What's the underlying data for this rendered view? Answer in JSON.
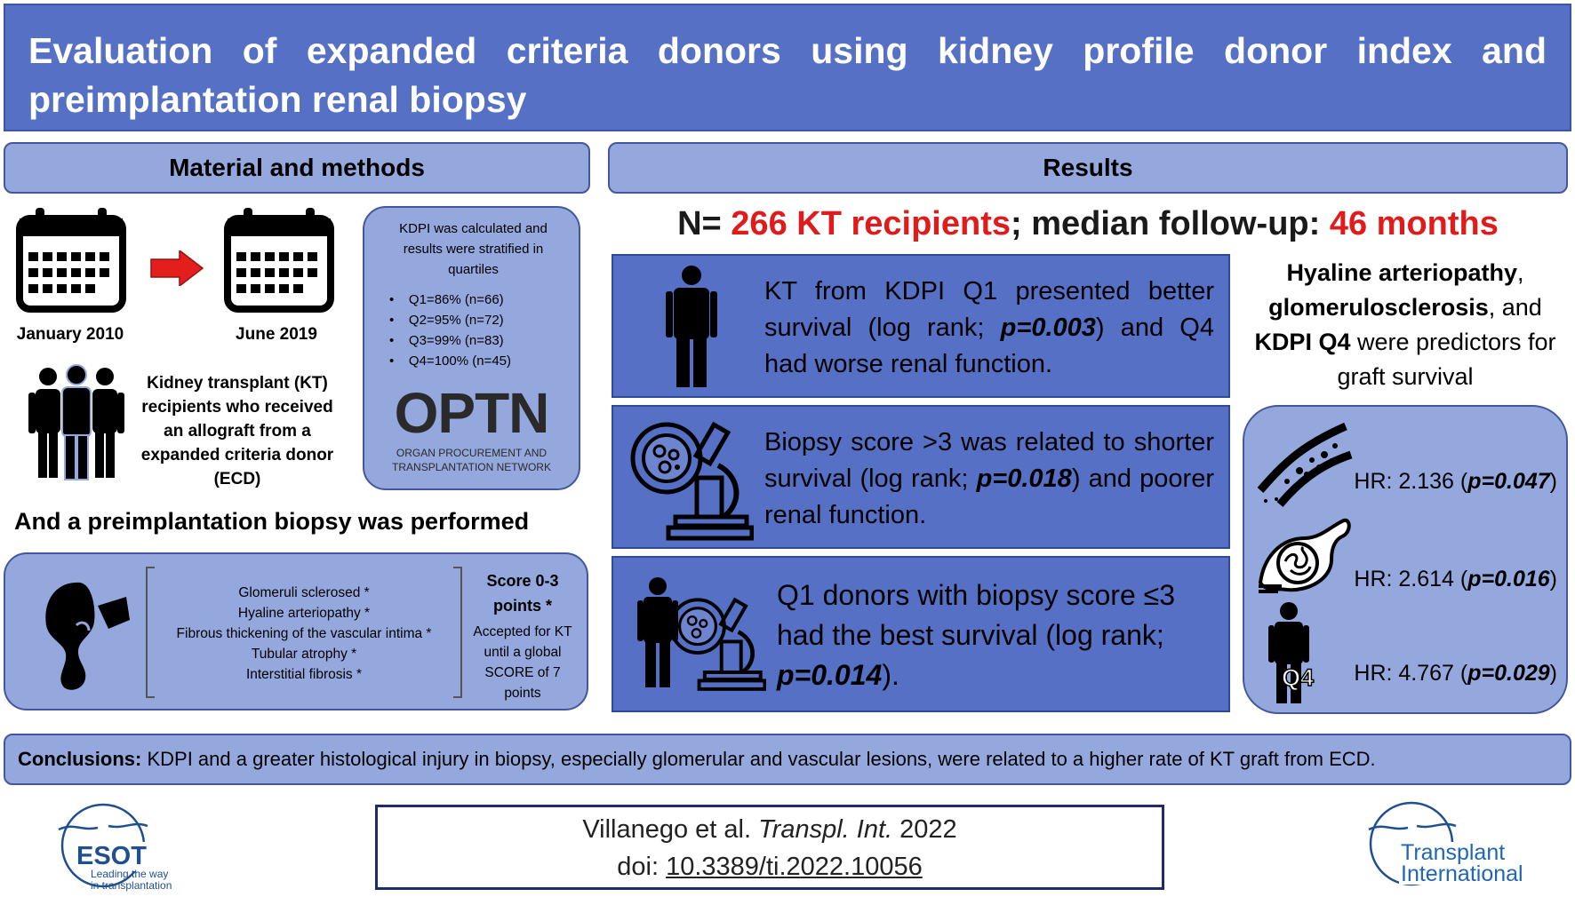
{
  "title": "Evaluation of expanded criteria donors using kidney profile donor index and preimplantation renal biopsy",
  "methods": {
    "header": "Material and methods",
    "date_start": "January 2010",
    "date_end": "June 2019",
    "recipients_text": "Kidney transplant (KT) recipients who received an allograft from a expanded criteria donor (ECD)",
    "kdpi_intro": "KDPI was calculated and results were stratified in quartiles",
    "quartiles": [
      "Q1=86% (n=66)",
      "Q2=95% (n=72)",
      "Q3=99% (n=83)",
      "Q4=100% (n=45)"
    ],
    "optn_logo": "OPTN",
    "optn_sub1": "ORGAN PROCUREMENT AND",
    "optn_sub2": "TRANSPLANTATION NETWORK",
    "biopsy_heading": "And a preimplantation biopsy was performed",
    "criteria": [
      "Glomeruli sclerosed *",
      "Hyaline arteriopathy *",
      "Fibrous thickening of the vascular intima *",
      "Tubular atrophy *",
      "Interstitial fibrosis *"
    ],
    "score_title": "Score 0-3 points *",
    "score_text": "Accepted for KT until a global SCORE of 7 points"
  },
  "results": {
    "header": "Results",
    "summary_prefix": "N= ",
    "summary_n": "266 KT recipients",
    "summary_mid": "; median follow-up: ",
    "summary_months": "46 months",
    "box1": {
      "pre": "KT from KDPI Q1 presented better survival (log rank; ",
      "p": "p=0.003",
      "post": ") and Q4 had worse renal function."
    },
    "box2": {
      "pre": "Biopsy score >3 was related to shorter survival (log rank; ",
      "p": "p=0.018",
      "post": ") and poorer renal function."
    },
    "box3": {
      "pre": "Q1 donors with biopsy score ≤3 had the best survival (log rank; ",
      "p": "p=0.014",
      "post": ")."
    },
    "predictors": {
      "b1": "Hyaline arteriopathy",
      "t1": ", ",
      "b2": "glomerulosclerosis",
      "t2": ", and ",
      "b3": "KDPI Q4",
      "t3": " were predictors for graft survival"
    },
    "hr": [
      {
        "label": "HR: 2.136 (",
        "p": "p=0.047",
        "close": ")"
      },
      {
        "label": "HR: 2.614 (",
        "p": "p=0.016",
        "close": ")"
      },
      {
        "label": "HR: 4.767 (",
        "p": "p=0.029",
        "close": ")"
      }
    ],
    "q4_label": "Q4"
  },
  "conclusions": {
    "label": "Conclusions:",
    "text": " KDPI and a greater histological injury in biopsy, especially  glomerular and vascular lesions, were related to a higher rate of KT graft from ECD."
  },
  "citation": {
    "authors": "Villanego et al. ",
    "journal": "Transpl. Int.",
    "year": " 2022",
    "doi_prefix": "doi: ",
    "doi": "10.3389/ti.2022.10056"
  },
  "logos": {
    "esot": "ESOT",
    "esot_tag1": "Leading the way",
    "esot_tag2": "in transplantation",
    "ti1": "Transplant",
    "ti2": "International"
  },
  "colors": {
    "accent_red": "#e01b1b",
    "title_blue": "#5570c4",
    "light_blue": "#94a8dd",
    "logo_blue": "#1f66b3"
  }
}
